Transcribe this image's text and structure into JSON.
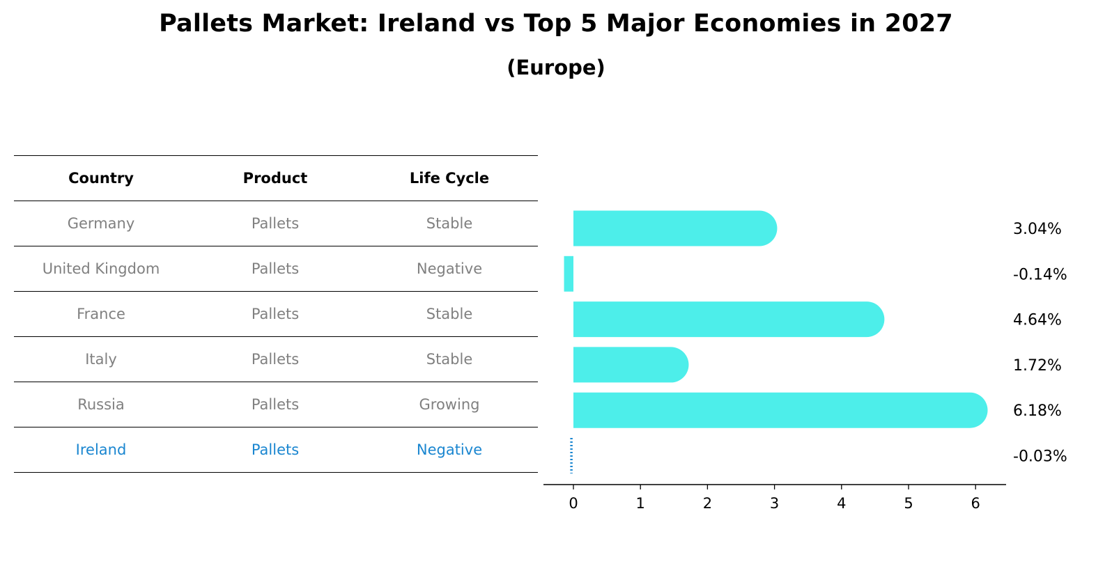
{
  "title": "Pallets Market: Ireland vs Top 5 Major Economies in 2027",
  "subtitle": "(Europe)",
  "table": {
    "headers": [
      "Country",
      "Product",
      "Life Cycle"
    ],
    "rows": [
      [
        "Germany",
        "Pallets",
        "Stable"
      ],
      [
        "United Kingdom",
        "Pallets",
        "Negative"
      ],
      [
        "France",
        "Pallets",
        "Stable"
      ],
      [
        "Italy",
        "Pallets",
        "Stable"
      ],
      [
        "Russia",
        "Pallets",
        "Growing"
      ],
      [
        "Ireland",
        "Pallets",
        "Negative"
      ]
    ],
    "highlight_row": 5
  },
  "colors": {
    "bar": "#4deeea",
    "highlight": "#1a86d0",
    "muted_text": "#808080"
  },
  "chart_data": {
    "type": "bar",
    "orientation": "horizontal",
    "categories": [
      "Germany",
      "United Kingdom",
      "France",
      "Italy",
      "Russia",
      "Ireland"
    ],
    "values": [
      3.04,
      -0.14,
      4.64,
      1.72,
      6.18,
      -0.03
    ],
    "value_labels": [
      "3.04%",
      "-0.14%",
      "4.64%",
      "1.72%",
      "6.18%",
      "-0.03%"
    ],
    "xticks": [
      0,
      1,
      2,
      3,
      4,
      5,
      6
    ],
    "xlim": [
      -0.47,
      6.5
    ],
    "xlabel": "",
    "ylabel": "",
    "grid": false
  }
}
